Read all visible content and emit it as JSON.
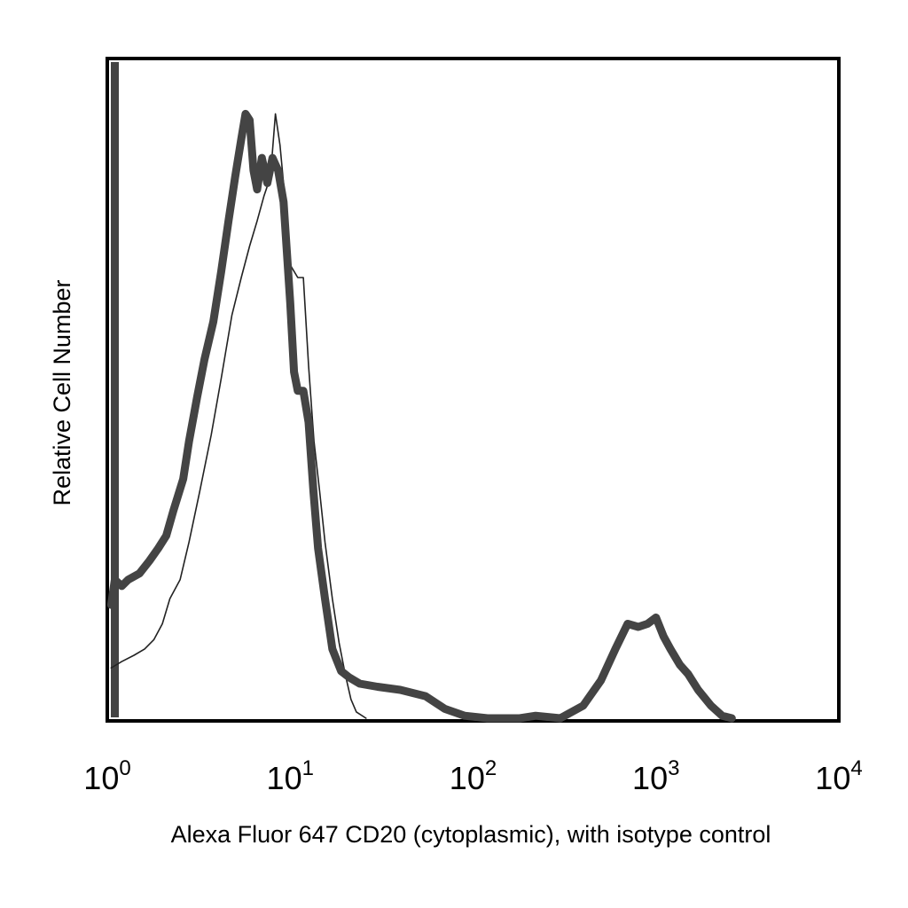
{
  "chart_data": {
    "type": "line",
    "title": "",
    "xlabel": "Alexa Fluor 647 CD20 (cytoplasmic), with isotype control",
    "ylabel": "Relative Cell Number",
    "x_scale": "log",
    "xlim": [
      1,
      10000
    ],
    "ylim": [
      0,
      1
    ],
    "grid": false,
    "legend": "none",
    "x_ticks": [
      {
        "base": "10",
        "exp": "0",
        "value": 1
      },
      {
        "base": "10",
        "exp": "1",
        "value": 10
      },
      {
        "base": "10",
        "exp": "2",
        "value": 100
      },
      {
        "base": "10",
        "exp": "3",
        "value": 1000
      },
      {
        "base": "10",
        "exp": "4",
        "value": 10000
      }
    ],
    "series": [
      {
        "role": "stained",
        "color": "#444444",
        "stroke": "thick",
        "points": [
          [
            1.05,
            0.18
          ],
          [
            1.1,
            0.22
          ],
          [
            1.2,
            0.21
          ],
          [
            1.3,
            0.22
          ],
          [
            1.5,
            0.23
          ],
          [
            1.7,
            0.25
          ],
          [
            1.9,
            0.27
          ],
          [
            2.1,
            0.29
          ],
          [
            2.3,
            0.33
          ],
          [
            2.6,
            0.38
          ],
          [
            2.8,
            0.44
          ],
          [
            3.1,
            0.51
          ],
          [
            3.4,
            0.57
          ],
          [
            3.8,
            0.63
          ],
          [
            4.2,
            0.71
          ],
          [
            4.6,
            0.79
          ],
          [
            5.0,
            0.86
          ],
          [
            5.4,
            0.92
          ],
          [
            5.7,
            0.96
          ],
          [
            6.0,
            0.95
          ],
          [
            6.3,
            0.87
          ],
          [
            6.6,
            0.84
          ],
          [
            7.0,
            0.89
          ],
          [
            7.5,
            0.85
          ],
          [
            8.0,
            0.89
          ],
          [
            8.6,
            0.87
          ],
          [
            9.2,
            0.82
          ],
          [
            10.0,
            0.66
          ],
          [
            10.5,
            0.55
          ],
          [
            11.0,
            0.52
          ],
          [
            11.8,
            0.52
          ],
          [
            12.6,
            0.47
          ],
          [
            13.4,
            0.36
          ],
          [
            14.2,
            0.27
          ],
          [
            15.5,
            0.19
          ],
          [
            17.0,
            0.11
          ],
          [
            19.0,
            0.075
          ],
          [
            21.0,
            0.065
          ],
          [
            24.0,
            0.055
          ],
          [
            30.0,
            0.05
          ],
          [
            40.0,
            0.045
          ],
          [
            55.0,
            0.035
          ],
          [
            70.0,
            0.015
          ],
          [
            90.0,
            0.004
          ],
          [
            120.0,
            0.0
          ],
          [
            180.0,
            0.0
          ],
          [
            220.0,
            0.004
          ],
          [
            300.0,
            0.0
          ],
          [
            400.0,
            0.02
          ],
          [
            500.0,
            0.06
          ],
          [
            600.0,
            0.11
          ],
          [
            700.0,
            0.15
          ],
          [
            800.0,
            0.145
          ],
          [
            900.0,
            0.15
          ],
          [
            1000.0,
            0.16
          ],
          [
            1100.0,
            0.13
          ],
          [
            1200.0,
            0.11
          ],
          [
            1350.0,
            0.085
          ],
          [
            1500.0,
            0.07
          ],
          [
            1700.0,
            0.045
          ],
          [
            2000.0,
            0.02
          ],
          [
            2300.0,
            0.004
          ],
          [
            2600.0,
            0.0
          ]
        ]
      },
      {
        "role": "isotype control",
        "color": "#222222",
        "stroke": "thin",
        "points": [
          [
            1.05,
            0.08
          ],
          [
            1.2,
            0.09
          ],
          [
            1.4,
            0.1
          ],
          [
            1.6,
            0.11
          ],
          [
            1.8,
            0.125
          ],
          [
            2.0,
            0.15
          ],
          [
            2.2,
            0.19
          ],
          [
            2.5,
            0.22
          ],
          [
            2.8,
            0.28
          ],
          [
            3.2,
            0.36
          ],
          [
            3.7,
            0.45
          ],
          [
            4.2,
            0.54
          ],
          [
            4.8,
            0.64
          ],
          [
            5.4,
            0.7
          ],
          [
            6.0,
            0.75
          ],
          [
            6.6,
            0.79
          ],
          [
            7.2,
            0.83
          ],
          [
            7.8,
            0.86
          ],
          [
            8.3,
            0.96
          ],
          [
            8.8,
            0.91
          ],
          [
            9.4,
            0.82
          ],
          [
            10.0,
            0.72
          ],
          [
            11.0,
            0.7
          ],
          [
            11.8,
            0.7
          ],
          [
            12.6,
            0.56
          ],
          [
            13.5,
            0.44
          ],
          [
            14.5,
            0.36
          ],
          [
            15.5,
            0.28
          ],
          [
            17.0,
            0.19
          ],
          [
            18.5,
            0.12
          ],
          [
            20.0,
            0.07
          ],
          [
            21.5,
            0.03
          ],
          [
            23.0,
            0.01
          ],
          [
            26.0,
            0.0
          ]
        ]
      }
    ]
  }
}
